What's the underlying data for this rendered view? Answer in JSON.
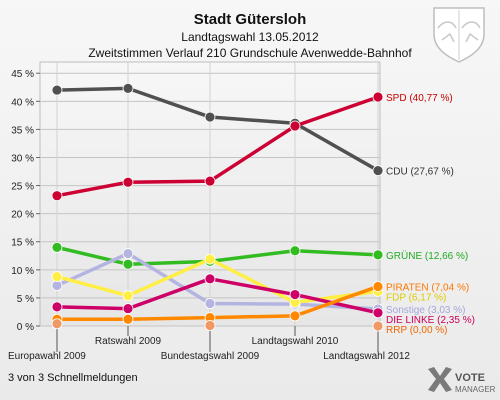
{
  "header": {
    "title": "Stadt Gütersloh",
    "subtitle": "Landtagswahl 13.05.2012",
    "description": "Zweitstimmen Verlauf 210 Grundschule Avenwedde-Bahnhof"
  },
  "footer": {
    "status": "3 von 3 Schnellmeldungen",
    "brand_line1": "VOTE",
    "brand_line2": "MANAGER"
  },
  "chart_data": {
    "type": "line",
    "title": "Stadt Gütersloh",
    "subtitle": "Landtagswahl 13.05.2012",
    "xlabel": "",
    "ylabel": "",
    "x": [
      "Europawahl 2009",
      "Ratswahl 2009",
      "Bundestagswahl 2009",
      "Landtagswahl 2010",
      "Landtagswahl 2012"
    ],
    "ylim": [
      0,
      47
    ],
    "yticks": [
      "0 %",
      "5 %",
      "10 %",
      "15 %",
      "20 %",
      "25 %",
      "30 %",
      "35 %",
      "40 %",
      "45 %"
    ],
    "ytick_values": [
      0,
      5,
      10,
      15,
      20,
      25,
      30,
      35,
      40,
      45
    ],
    "grid": true,
    "series": [
      {
        "name": "CDU",
        "color": "#505050",
        "values": [
          42.0,
          42.3,
          37.2,
          36.1,
          27.67
        ],
        "label": "CDU (27,67 %)",
        "label_color": "#333333"
      },
      {
        "name": "SPD",
        "color": "#cc0033",
        "values": [
          23.2,
          25.6,
          25.8,
          35.6,
          40.77
        ],
        "label": "SPD (40,77 %)",
        "label_color": "#cc0000"
      },
      {
        "name": "GRÜNE",
        "color": "#33bb22",
        "values": [
          14.0,
          11.0,
          11.5,
          13.4,
          12.66
        ],
        "label": "GRÜNE (12,66 %)",
        "label_color": "#22aa22"
      },
      {
        "name": "Sonstige",
        "color": "#b4b4e0",
        "values": [
          7.2,
          12.9,
          4.0,
          3.9,
          3.03
        ],
        "label": "Sonstige (3,03 %)",
        "label_color": "#a6a6dd"
      },
      {
        "name": "FDP",
        "color": "#ffee44",
        "values": [
          8.8,
          5.4,
          11.9,
          4.2,
          6.17
        ],
        "label": "FDP (6,17 %)",
        "label_color": "#ddcc00"
      },
      {
        "name": "DIE LINKE",
        "color": "#cc0066",
        "values": [
          3.4,
          3.1,
          8.4,
          5.6,
          2.35
        ],
        "label": "DIE LINKE (2,35 %)",
        "label_color": "#cc0055"
      },
      {
        "name": "PIRATEN",
        "color": "#ff8800",
        "values": [
          1.2,
          1.2,
          1.5,
          1.8,
          7.04
        ],
        "label": "PIRATEN (7,04 %)",
        "label_color": "#ff7700"
      },
      {
        "name": "RRP",
        "color": "#ee9966",
        "values": [
          0.4,
          null,
          0.1,
          null,
          0.0
        ],
        "label": "RRP (0,00 %)",
        "label_color": "#ee6600"
      }
    ]
  }
}
